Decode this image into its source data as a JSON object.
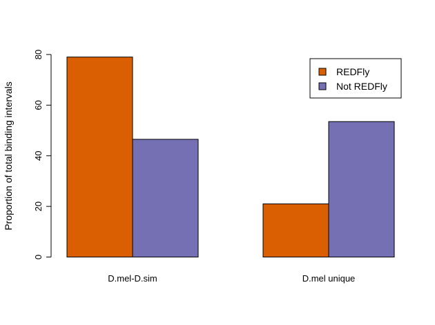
{
  "chart_data": {
    "type": "bar",
    "title": "",
    "xlabel": "",
    "ylabel": "Proportion of total binding intervals",
    "categories": [
      "D.mel-D.sim",
      "D.mel unique"
    ],
    "series": [
      {
        "name": "REDFly",
        "color": "#d95f02",
        "values": [
          79,
          21
        ]
      },
      {
        "name": "Not REDFly",
        "color": "#7570b3",
        "values": [
          46.5,
          53.5
        ]
      }
    ],
    "ylim": [
      0,
      80
    ],
    "yticks": [
      0,
      20,
      40,
      60,
      80
    ],
    "grid": false,
    "legend_position": "top-right"
  }
}
